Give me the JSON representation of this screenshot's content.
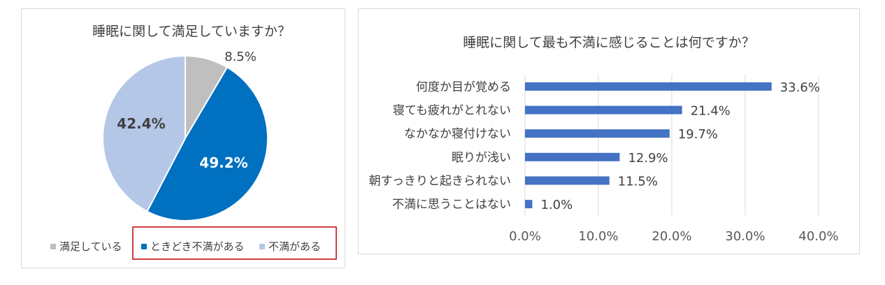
{
  "colors": {
    "satisfied": "#bfbfbf",
    "sometimes": "#0070c0",
    "dissatisfied": "#b4c7e7",
    "bar": "#4472c4",
    "highlight_border": "#c00000",
    "grid": "#d9d9d9"
  },
  "chart_data": [
    {
      "type": "pie",
      "title": "睡眠に関して満足していますか？",
      "series": [
        {
          "name": "満足している",
          "value": 8.5,
          "label": "8.5%"
        },
        {
          "name": "ときどき不満がある",
          "value": 49.2,
          "label": "49.2%"
        },
        {
          "name": "不満がある",
          "value": 42.4,
          "label": "42.4%"
        }
      ],
      "legend_placement": "bottom",
      "highlighted_legend_entries": [
        "ときどき不満がある",
        "不満がある"
      ]
    },
    {
      "type": "bar",
      "orientation": "horizontal",
      "title": "睡眠に関して最も不満に感じることは何ですか？",
      "categories": [
        "何度か目が覚める",
        "寝ても疲れがとれない",
        "なかなか寝付けない",
        "眠りが浅い",
        "朝すっきりと起きられない",
        "不満に思うことはない"
      ],
      "values": [
        33.6,
        21.4,
        19.7,
        12.9,
        11.5,
        1.0
      ],
      "value_labels": [
        "33.6%",
        "21.4%",
        "19.7%",
        "12.9%",
        "11.5%",
        "1.0%"
      ],
      "xlim": [
        0,
        40
      ],
      "x_ticks": [
        "0.0%",
        "10.0%",
        "20.0%",
        "30.0%",
        "40.0%"
      ],
      "grid": true
    }
  ]
}
